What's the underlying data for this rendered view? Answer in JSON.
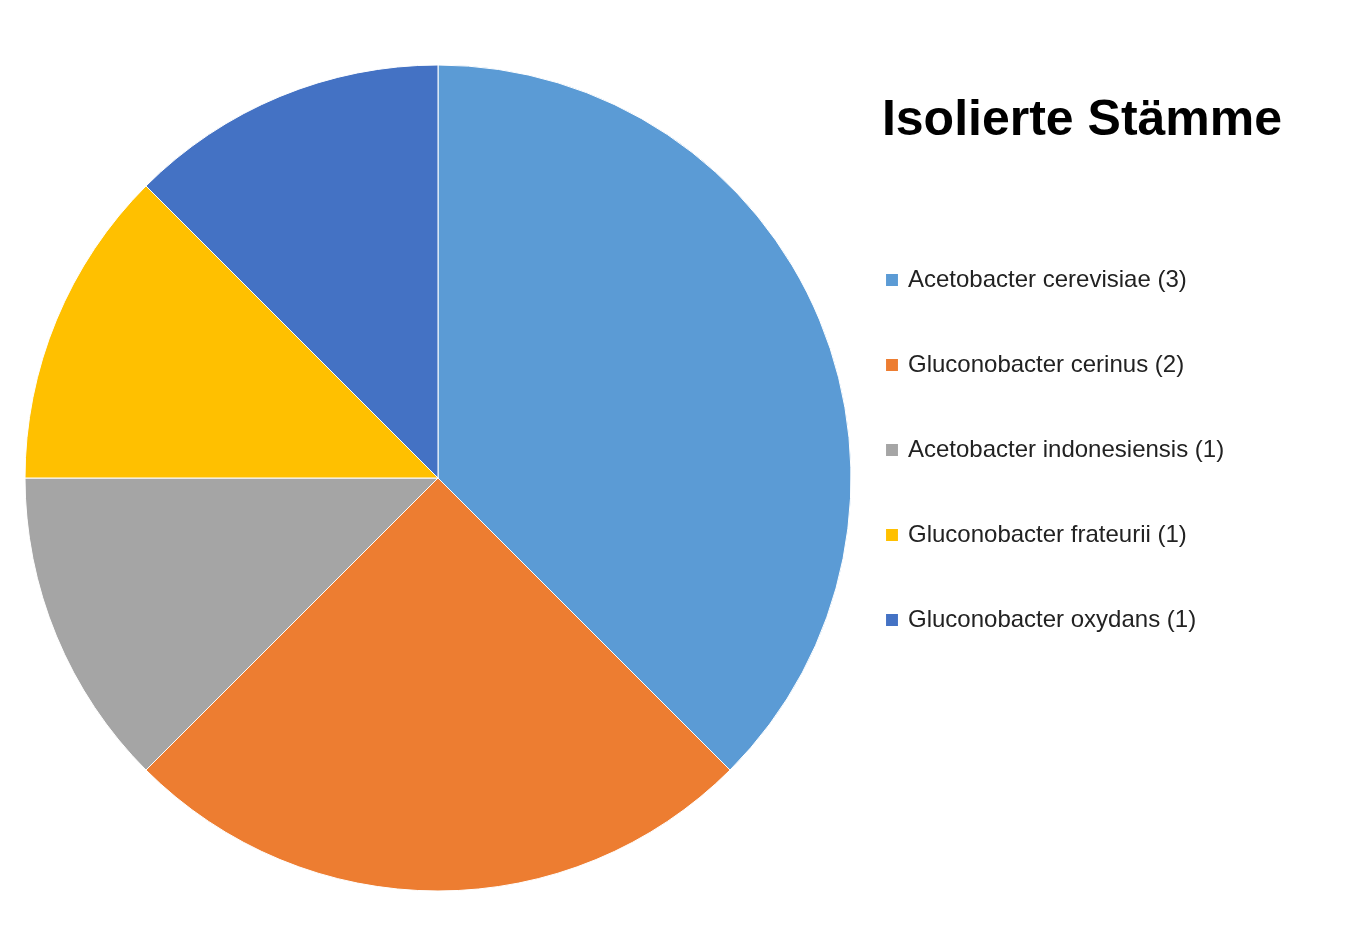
{
  "chart_data": {
    "type": "pie",
    "title": "Isolierte Stämme",
    "categories": [
      "Acetobacter cerevisiae (3)",
      "Gluconobacter cerinus (2)",
      "Acetobacter indonesiensis (1)",
      "Gluconobacter frateurii (1)",
      "Gluconobacter oxydans (1)"
    ],
    "values": [
      3,
      2,
      1,
      1,
      1
    ],
    "colors": [
      "#5b9bd5",
      "#ed7d31",
      "#a5a5a5",
      "#ffc000",
      "#4472c4"
    ],
    "legend": "right"
  }
}
